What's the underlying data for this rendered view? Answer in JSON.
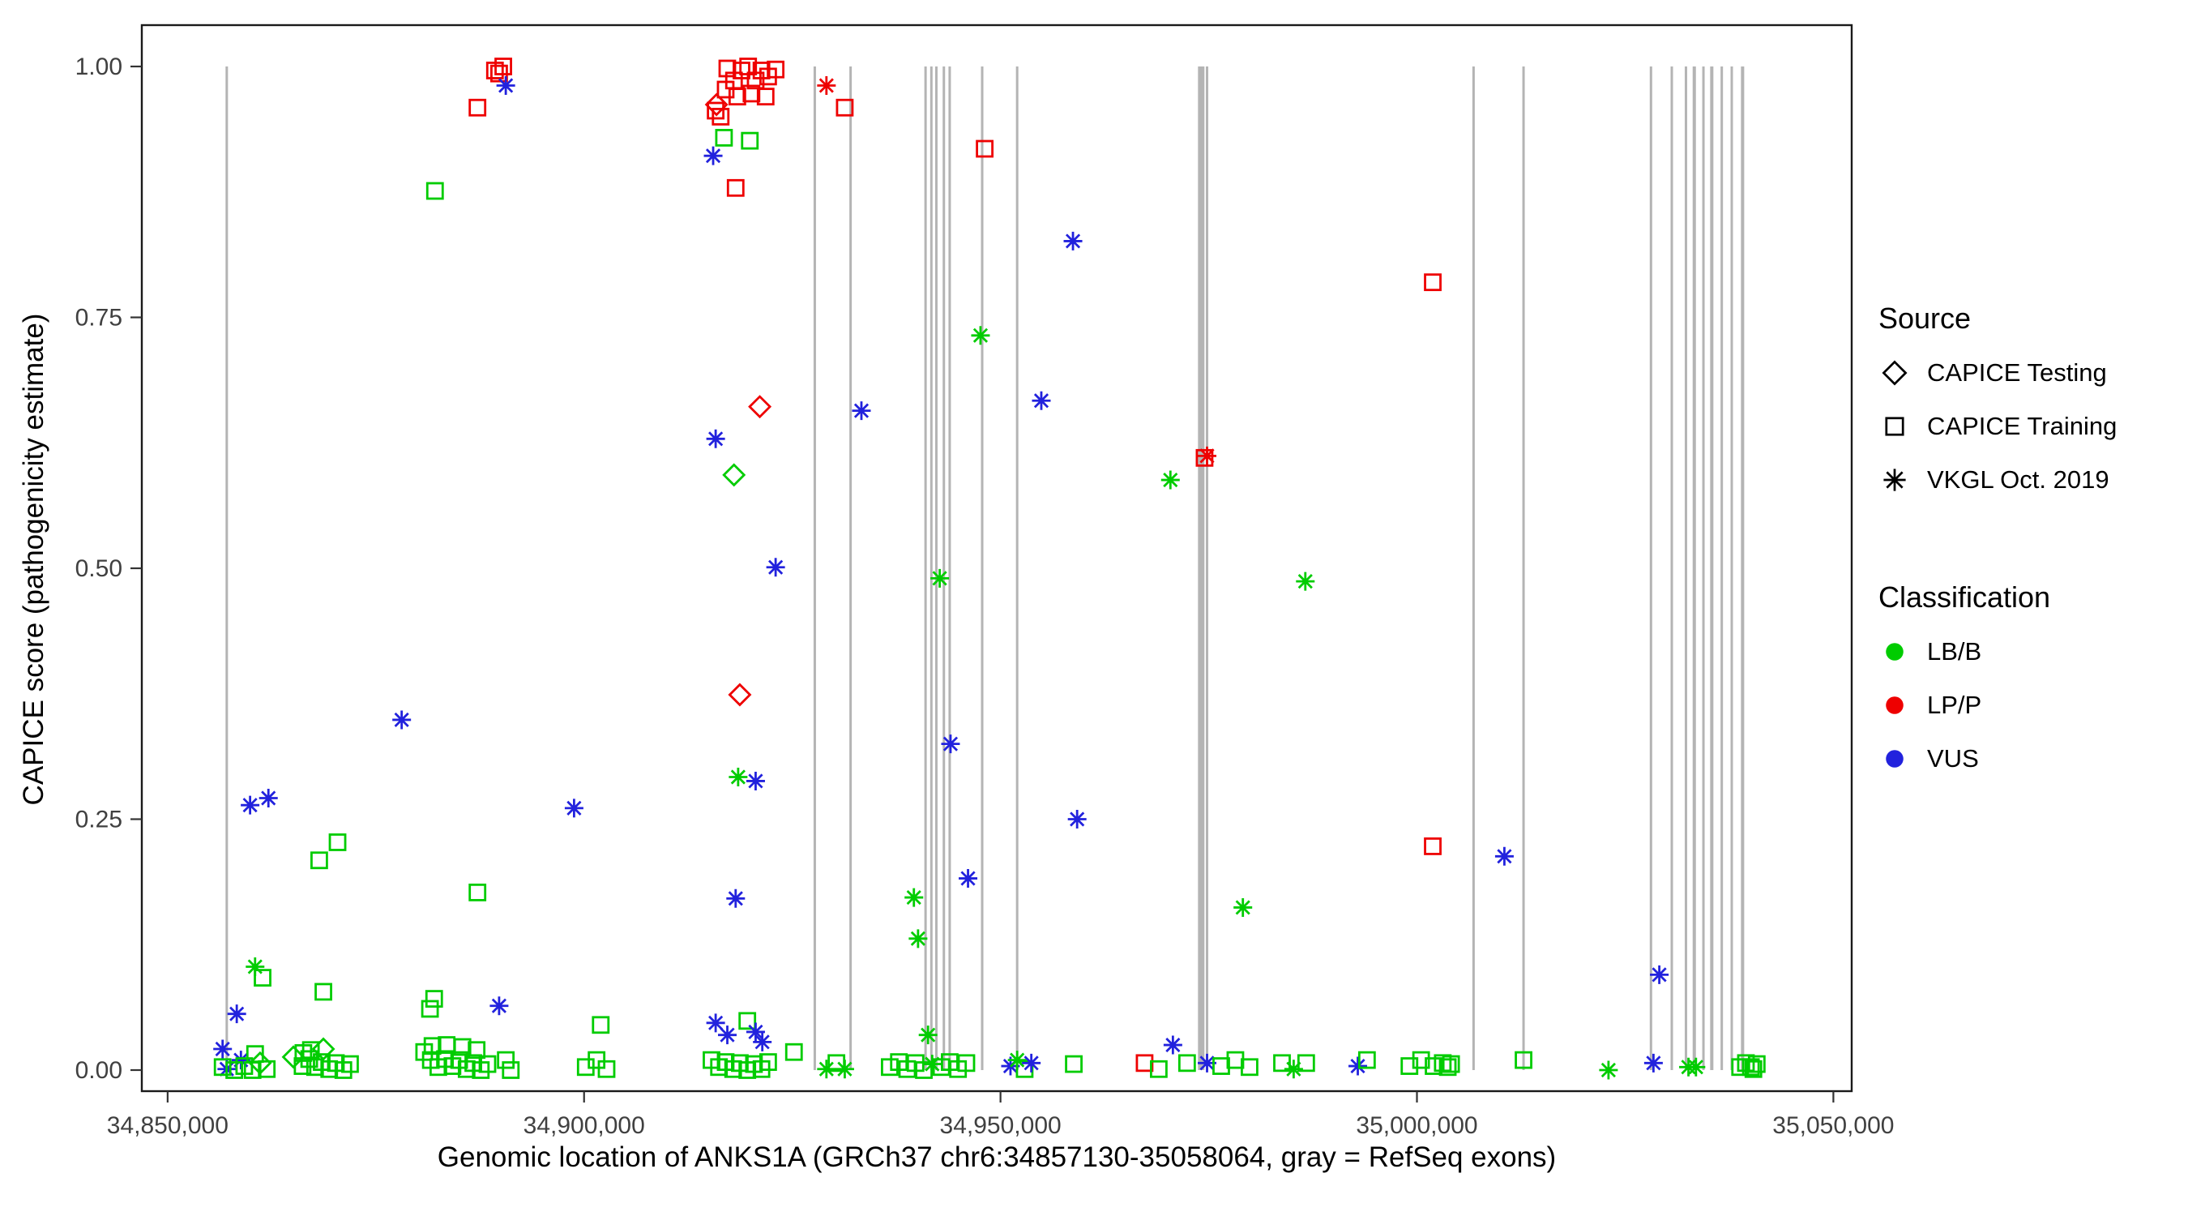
{
  "chart_data": {
    "type": "scatter",
    "title": "",
    "xlabel": "Genomic location of ANKS1A (GRCh37 chr6:34857130-35058064, gray = RefSeq exons)",
    "ylabel": "CAPICE score (pathogenicity estimate)",
    "x_range": [
      34846900,
      35052200
    ],
    "y_range": [
      0,
      1
    ],
    "x_ticks": [
      {
        "v": 34850000,
        "label": "34,850,000"
      },
      {
        "v": 34900000,
        "label": "34,900,000"
      },
      {
        "v": 34950000,
        "label": "34,950,000"
      },
      {
        "v": 35000000,
        "label": "35,000,000"
      },
      {
        "v": 35050000,
        "label": "35,050,000"
      }
    ],
    "y_ticks": [
      {
        "v": 0.0,
        "label": "0.00"
      },
      {
        "v": 0.25,
        "label": "0.25"
      },
      {
        "v": 0.5,
        "label": "0.50"
      },
      {
        "v": 0.75,
        "label": "0.75"
      },
      {
        "v": 1.0,
        "label": "1.00"
      }
    ],
    "legend": {
      "source_title": "Source",
      "source_items": [
        {
          "label": "CAPICE Testing",
          "shape": "diamond"
        },
        {
          "label": "CAPICE Training",
          "shape": "square"
        },
        {
          "label": "VKGL Oct. 2019",
          "shape": "asterisk"
        }
      ],
      "classification_title": "Classification",
      "classification_items": [
        {
          "label": "LB/B",
          "color": "#00CC00"
        },
        {
          "label": "LP/P",
          "color": "#EE0000"
        },
        {
          "label": "VUS",
          "color": "#2222DD"
        }
      ]
    },
    "source_codes": {
      "T": "CAPICE Testing",
      "R": "CAPICE Training",
      "V": "VKGL Oct. 2019"
    },
    "class_codes": {
      "B": "LB/B",
      "P": "LP/P",
      "U": "VUS"
    },
    "colors": {
      "LB/B": "#00CC00",
      "LP/P": "#EE0000",
      "VUS": "#2222DD"
    },
    "exon_lines": {
      "color": "#B4B4B4",
      "positions": [
        {
          "x": 34857100,
          "w": 3
        },
        {
          "x": 34927700,
          "w": 3
        },
        {
          "x": 34932000,
          "w": 3
        },
        {
          "x": 34941000,
          "w": 3
        },
        {
          "x": 34941700,
          "w": 3
        },
        {
          "x": 34942300,
          "w": 3
        },
        {
          "x": 34943200,
          "w": 3
        },
        {
          "x": 34943900,
          "w": 3
        },
        {
          "x": 34947800,
          "w": 3
        },
        {
          "x": 34952000,
          "w": 3
        },
        {
          "x": 34974100,
          "w": 8
        },
        {
          "x": 34974800,
          "w": 3
        },
        {
          "x": 35006800,
          "w": 3
        },
        {
          "x": 35012800,
          "w": 3
        },
        {
          "x": 35028100,
          "w": 3
        },
        {
          "x": 35030600,
          "w": 3
        },
        {
          "x": 35032300,
          "w": 3
        },
        {
          "x": 35033300,
          "w": 4
        },
        {
          "x": 35034400,
          "w": 3
        },
        {
          "x": 35035400,
          "w": 4
        },
        {
          "x": 35036600,
          "w": 3
        },
        {
          "x": 35037800,
          "w": 3
        },
        {
          "x": 35039100,
          "w": 4
        }
      ]
    },
    "points": [
      [
        34887200,
        0.959,
        "R",
        "P"
      ],
      [
        34889300,
        0.996,
        "R",
        "P"
      ],
      [
        34890300,
        1.0,
        "R",
        "P"
      ],
      [
        34889800,
        0.993,
        "R",
        "P"
      ],
      [
        34890600,
        0.981,
        "V",
        "U"
      ],
      [
        34882100,
        0.876,
        "R",
        "B"
      ],
      [
        34915900,
        0.962,
        "T",
        "P"
      ],
      [
        34917200,
        0.998,
        "R",
        "P"
      ],
      [
        34918000,
        0.986,
        "R",
        "P"
      ],
      [
        34918900,
        0.996,
        "R",
        "P"
      ],
      [
        34919700,
        1.0,
        "R",
        "P"
      ],
      [
        34920600,
        0.986,
        "R",
        "P"
      ],
      [
        34921300,
        0.996,
        "R",
        "P"
      ],
      [
        34922100,
        0.99,
        "R",
        "P"
      ],
      [
        34923000,
        0.997,
        "R",
        "P"
      ],
      [
        34917000,
        0.977,
        "R",
        "P"
      ],
      [
        34918400,
        0.97,
        "R",
        "P"
      ],
      [
        34920100,
        0.973,
        "R",
        "P"
      ],
      [
        34921800,
        0.97,
        "R",
        "P"
      ],
      [
        34915800,
        0.956,
        "R",
        "P"
      ],
      [
        34916400,
        0.95,
        "R",
        "P"
      ],
      [
        34916800,
        0.929,
        "R",
        "B"
      ],
      [
        34919900,
        0.926,
        "R",
        "B"
      ],
      [
        34915500,
        0.911,
        "V",
        "U"
      ],
      [
        34918200,
        0.879,
        "R",
        "P"
      ],
      [
        34929100,
        0.981,
        "V",
        "P"
      ],
      [
        34931300,
        0.959,
        "R",
        "P"
      ],
      [
        34948100,
        0.918,
        "R",
        "P"
      ],
      [
        34921100,
        0.661,
        "T",
        "P"
      ],
      [
        34933300,
        0.657,
        "V",
        "U"
      ],
      [
        34947600,
        0.732,
        "V",
        "B"
      ],
      [
        34954900,
        0.667,
        "V",
        "U"
      ],
      [
        34958700,
        0.826,
        "V",
        "U"
      ],
      [
        34970400,
        0.588,
        "V",
        "B"
      ],
      [
        34974800,
        0.612,
        "V",
        "P"
      ],
      [
        34974500,
        0.61,
        "R",
        "P"
      ],
      [
        34986600,
        0.487,
        "V",
        "B"
      ],
      [
        35001900,
        0.785,
        "R",
        "P"
      ],
      [
        35001900,
        0.223,
        "R",
        "P"
      ],
      [
        35010500,
        0.213,
        "V",
        "U"
      ],
      [
        34915800,
        0.629,
        "V",
        "U"
      ],
      [
        34918000,
        0.593,
        "T",
        "B"
      ],
      [
        34923000,
        0.501,
        "V",
        "U"
      ],
      [
        34918700,
        0.374,
        "T",
        "P"
      ],
      [
        34878100,
        0.349,
        "V",
        "U"
      ],
      [
        34859900,
        0.264,
        "V",
        "U"
      ],
      [
        34862100,
        0.271,
        "V",
        "U"
      ],
      [
        34898800,
        0.261,
        "V",
        "U"
      ],
      [
        34868200,
        0.209,
        "R",
        "B"
      ],
      [
        34870400,
        0.227,
        "R",
        "B"
      ],
      [
        34887200,
        0.177,
        "R",
        "B"
      ],
      [
        34918200,
        0.171,
        "V",
        "U"
      ],
      [
        34918500,
        0.292,
        "V",
        "B"
      ],
      [
        34920600,
        0.288,
        "V",
        "U"
      ],
      [
        34944000,
        0.325,
        "V",
        "U"
      ],
      [
        34946100,
        0.191,
        "V",
        "U"
      ],
      [
        34939600,
        0.172,
        "V",
        "B"
      ],
      [
        34940100,
        0.131,
        "V",
        "B"
      ],
      [
        34942700,
        0.49,
        "V",
        "B"
      ],
      [
        34959200,
        0.25,
        "V",
        "U"
      ],
      [
        34979100,
        0.162,
        "V",
        "B"
      ],
      [
        35029100,
        0.095,
        "V",
        "U"
      ],
      [
        34860500,
        0.103,
        "V",
        "B"
      ],
      [
        34858300,
        0.056,
        "V",
        "U"
      ],
      [
        34889800,
        0.064,
        "V",
        "U"
      ],
      [
        34970700,
        0.025,
        "V",
        "U"
      ],
      [
        34857100,
        0.001,
        "V",
        "U"
      ],
      [
        34858800,
        0.01,
        "V",
        "U"
      ],
      [
        34856600,
        0.021,
        "V",
        "U"
      ],
      [
        34856600,
        0.003,
        "R",
        "B"
      ],
      [
        34858000,
        0.0,
        "R",
        "B"
      ],
      [
        34859200,
        0.004,
        "R",
        "B"
      ],
      [
        34860200,
        0.0,
        "R",
        "B"
      ],
      [
        34861100,
        0.007,
        "T",
        "B"
      ],
      [
        34861900,
        0.001,
        "R",
        "B"
      ],
      [
        34860500,
        0.016,
        "R",
        "B"
      ],
      [
        34861400,
        0.092,
        "R",
        "B"
      ],
      [
        34865100,
        0.013,
        "T",
        "B"
      ],
      [
        34866200,
        0.004,
        "R",
        "B"
      ],
      [
        34867000,
        0.011,
        "R",
        "B"
      ],
      [
        34867700,
        0.003,
        "R",
        "B"
      ],
      [
        34868500,
        0.008,
        "R",
        "B"
      ],
      [
        34869400,
        0.001,
        "R",
        "B"
      ],
      [
        34870200,
        0.007,
        "R",
        "B"
      ],
      [
        34871100,
        0.0,
        "R",
        "B"
      ],
      [
        34871900,
        0.006,
        "R",
        "B"
      ],
      [
        34867200,
        0.02,
        "R",
        "B"
      ],
      [
        34868700,
        0.021,
        "T",
        "B"
      ],
      [
        34866300,
        0.017,
        "R",
        "B"
      ],
      [
        34868700,
        0.078,
        "R",
        "B"
      ],
      [
        34880800,
        0.018,
        "R",
        "B"
      ],
      [
        34881600,
        0.01,
        "R",
        "B"
      ],
      [
        34882500,
        0.003,
        "R",
        "B"
      ],
      [
        34883300,
        0.011,
        "R",
        "B"
      ],
      [
        34884200,
        0.004,
        "R",
        "B"
      ],
      [
        34885000,
        0.01,
        "R",
        "B"
      ],
      [
        34885900,
        0.001,
        "R",
        "B"
      ],
      [
        34886700,
        0.007,
        "R",
        "B"
      ],
      [
        34887600,
        0.0,
        "R",
        "B"
      ],
      [
        34888400,
        0.006,
        "R",
        "B"
      ],
      [
        34881800,
        0.024,
        "R",
        "B"
      ],
      [
        34883500,
        0.025,
        "R",
        "B"
      ],
      [
        34885400,
        0.023,
        "R",
        "B"
      ],
      [
        34887100,
        0.02,
        "R",
        "B"
      ],
      [
        34881500,
        0.061,
        "R",
        "B"
      ],
      [
        34882000,
        0.071,
        "R",
        "B"
      ],
      [
        34891200,
        0.0,
        "R",
        "B"
      ],
      [
        34890600,
        0.01,
        "R",
        "B"
      ],
      [
        34900200,
        0.003,
        "R",
        "B"
      ],
      [
        34901500,
        0.01,
        "R",
        "B"
      ],
      [
        34902700,
        0.001,
        "R",
        "B"
      ],
      [
        34902000,
        0.045,
        "R",
        "B"
      ],
      [
        34915300,
        0.01,
        "R",
        "B"
      ],
      [
        34916200,
        0.003,
        "R",
        "B"
      ],
      [
        34917000,
        0.008,
        "R",
        "B"
      ],
      [
        34917900,
        0.001,
        "R",
        "B"
      ],
      [
        34918700,
        0.007,
        "R",
        "B"
      ],
      [
        34919600,
        0.0,
        "R",
        "B"
      ],
      [
        34920400,
        0.006,
        "R",
        "B"
      ],
      [
        34921300,
        0.001,
        "R",
        "B"
      ],
      [
        34922100,
        0.008,
        "R",
        "B"
      ],
      [
        34915800,
        0.047,
        "V",
        "U"
      ],
      [
        34917200,
        0.035,
        "V",
        "U"
      ],
      [
        34919600,
        0.049,
        "R",
        "B"
      ],
      [
        34920600,
        0.038,
        "V",
        "U"
      ],
      [
        34921400,
        0.028,
        "V",
        "U"
      ],
      [
        34925200,
        0.018,
        "R",
        "B"
      ],
      [
        34929100,
        0.001,
        "V",
        "B"
      ],
      [
        34930300,
        0.007,
        "R",
        "B"
      ],
      [
        34931300,
        0.001,
        "V",
        "B"
      ],
      [
        34936700,
        0.003,
        "R",
        "B"
      ],
      [
        34937800,
        0.008,
        "R",
        "B"
      ],
      [
        34938800,
        0.001,
        "R",
        "B"
      ],
      [
        34939800,
        0.007,
        "R",
        "B"
      ],
      [
        34940800,
        0.0,
        "R",
        "B"
      ],
      [
        34941800,
        0.006,
        "V",
        "B"
      ],
      [
        34941300,
        0.035,
        "V",
        "B"
      ],
      [
        34942900,
        0.003,
        "R",
        "B"
      ],
      [
        34943900,
        0.008,
        "R",
        "B"
      ],
      [
        34944900,
        0.001,
        "R",
        "B"
      ],
      [
        34945900,
        0.007,
        "R",
        "B"
      ],
      [
        34951200,
        0.004,
        "V",
        "U"
      ],
      [
        34952000,
        0.01,
        "V",
        "B"
      ],
      [
        34952900,
        0.001,
        "R",
        "B"
      ],
      [
        34953700,
        0.007,
        "V",
        "U"
      ],
      [
        34958800,
        0.006,
        "R",
        "B"
      ],
      [
        34967300,
        0.007,
        "R",
        "P"
      ],
      [
        34969000,
        0.001,
        "R",
        "B"
      ],
      [
        34972400,
        0.007,
        "R",
        "B"
      ],
      [
        34974800,
        0.007,
        "V",
        "U"
      ],
      [
        34976500,
        0.004,
        "R",
        "B"
      ],
      [
        34978200,
        0.01,
        "R",
        "B"
      ],
      [
        34979900,
        0.003,
        "R",
        "B"
      ],
      [
        34983800,
        0.007,
        "R",
        "B"
      ],
      [
        34985200,
        0.001,
        "V",
        "B"
      ],
      [
        34986700,
        0.007,
        "R",
        "B"
      ],
      [
        34992900,
        0.004,
        "V",
        "U"
      ],
      [
        34994000,
        0.01,
        "R",
        "B"
      ],
      [
        34999100,
        0.004,
        "R",
        "B"
      ],
      [
        35000500,
        0.01,
        "R",
        "B"
      ],
      [
        35002000,
        0.004,
        "R",
        "B"
      ],
      [
        35003100,
        0.007,
        "R",
        "B"
      ],
      [
        35003700,
        0.003,
        "R",
        "B"
      ],
      [
        35004100,
        0.006,
        "R",
        "B"
      ],
      [
        35012800,
        0.01,
        "R",
        "B"
      ],
      [
        35023000,
        0.0,
        "V",
        "B"
      ],
      [
        35028400,
        0.007,
        "V",
        "U"
      ],
      [
        35032600,
        0.003,
        "V",
        "B"
      ],
      [
        35033500,
        0.003,
        "V",
        "B"
      ],
      [
        35038800,
        0.003,
        "R",
        "B"
      ],
      [
        35039500,
        0.007,
        "R",
        "B"
      ],
      [
        35040100,
        0.003,
        "R",
        "B"
      ],
      [
        35040800,
        0.006,
        "R",
        "B"
      ],
      [
        35040400,
        0.001,
        "R",
        "B"
      ]
    ]
  }
}
